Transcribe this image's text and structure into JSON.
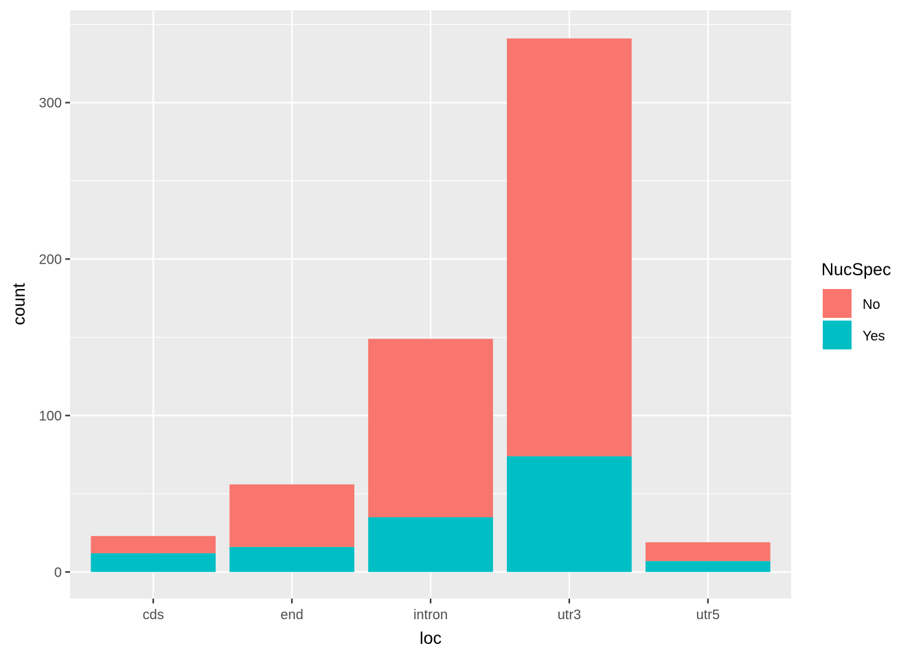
{
  "chart_data": {
    "type": "bar",
    "stacked": true,
    "categories": [
      "cds",
      "end",
      "intron",
      "utr3",
      "utr5"
    ],
    "series": [
      {
        "name": "Yes",
        "values": [
          12,
          16,
          35,
          74,
          7
        ],
        "color": "#00BFC4"
      },
      {
        "name": "No",
        "values": [
          11,
          40,
          114,
          267,
          12
        ],
        "color": "#F8766D"
      }
    ],
    "xlabel": "loc",
    "ylabel": "count",
    "ylim": [
      -17,
      359
    ],
    "yticks": [
      0,
      100,
      200,
      300
    ],
    "yticks_labels": [
      "0",
      "100",
      "200",
      "300"
    ],
    "grid": true,
    "legend": {
      "title": "NucSpec",
      "placement": "right",
      "items": [
        {
          "label": "No",
          "color": "#F8766D"
        },
        {
          "label": "Yes",
          "color": "#00BFC4"
        }
      ]
    },
    "colors": {
      "panel": "#EBEBEB",
      "grid": "#FFFFFF"
    }
  }
}
